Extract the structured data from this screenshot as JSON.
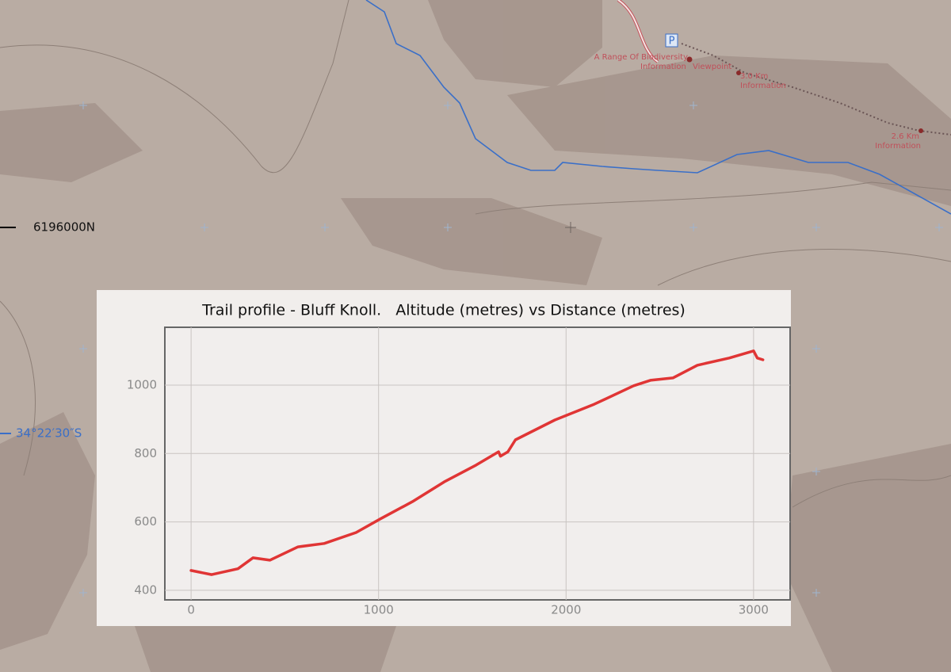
{
  "map": {
    "northing": "6196000N",
    "latitude": "34°22′30″S",
    "parking": "P",
    "poi_1": [
      "A Range Of Biodiversity",
      "Information",
      "Viewpoint"
    ],
    "poi_2": [
      "3.0 Km",
      "Information"
    ],
    "poi_3": [
      "2.6 Km",
      "Information"
    ]
  },
  "chart_data": {
    "type": "line",
    "title": "Trail profile - Bluff Knoll.   Altitude (metres) vs Distance (metres)",
    "x": [
      0,
      110,
      250,
      330,
      420,
      570,
      710,
      880,
      1010,
      1180,
      1350,
      1520,
      1640,
      1650,
      1690,
      1730,
      1940,
      2150,
      2360,
      2450,
      2570,
      2700,
      2870,
      3000,
      3020,
      3050
    ],
    "values": [
      458,
      446,
      463,
      495,
      488,
      527,
      537,
      569,
      609,
      659,
      717,
      766,
      805,
      792,
      805,
      840,
      898,
      944,
      998,
      1014,
      1021,
      1058,
      1079,
      1100,
      1079,
      1074
    ],
    "color": "#e03535",
    "xlim": [
      -140,
      3195
    ],
    "ylim": [
      372,
      1169
    ],
    "xticks": [
      0,
      1000,
      2000,
      3000
    ],
    "yticks": [
      400,
      600,
      800,
      1000
    ],
    "grid": true
  }
}
